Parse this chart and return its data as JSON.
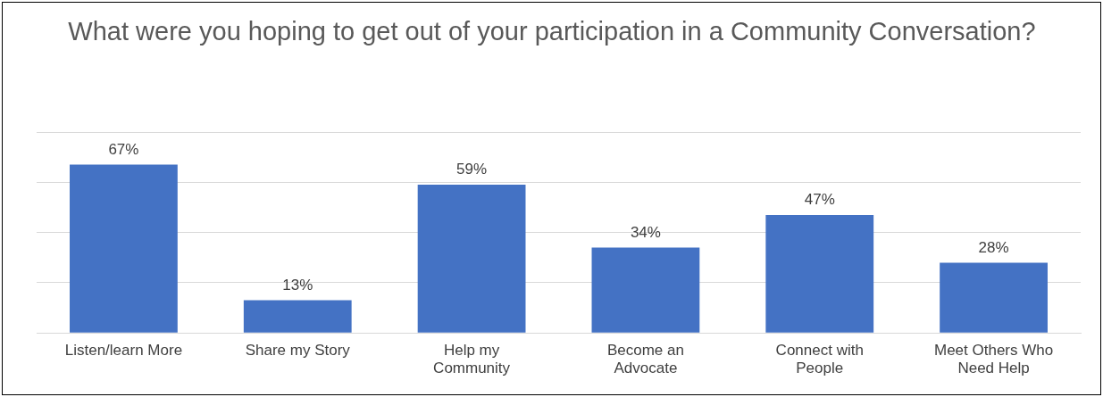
{
  "chart_data": {
    "type": "bar",
    "title": "What were you hoping to get out of your participation in a Community Conversation?",
    "categories": [
      "Listen/learn More",
      "Share my Story",
      "Help my Community",
      "Become an Advocate",
      "Connect with People",
      "Meet Others Who Need Help"
    ],
    "values": [
      67,
      13,
      59,
      34,
      47,
      28
    ],
    "color": "#4472c4",
    "value_labels": [
      "67%",
      "13%",
      "59%",
      "34%",
      "47%",
      "28%"
    ],
    "ylim": [
      0,
      80
    ],
    "yticks": [
      {
        "value": 0,
        "label": null
      },
      {
        "value": 20,
        "label": null
      },
      {
        "value": 40,
        "label": null
      },
      {
        "value": 60,
        "label": null
      },
      {
        "value": 80,
        "label": null
      }
    ],
    "grid": "y",
    "tick_labels": "x",
    "legend": false
  }
}
